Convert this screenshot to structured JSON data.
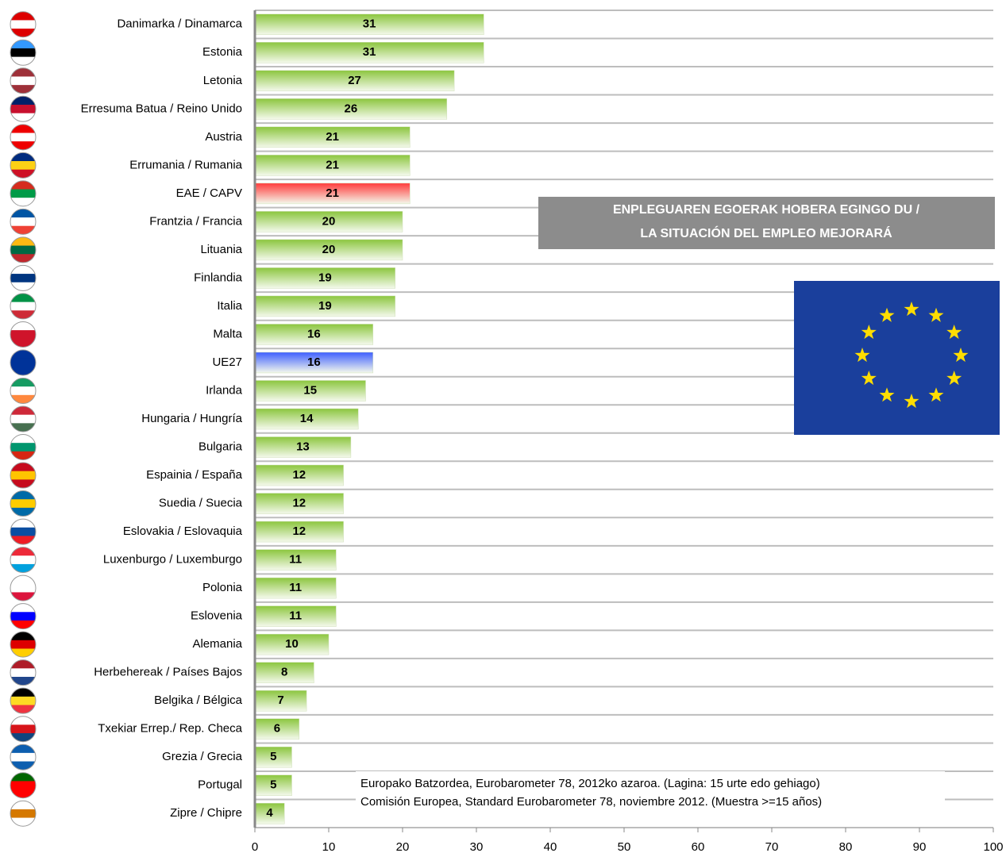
{
  "chart_data": {
    "type": "bar",
    "orientation": "horizontal",
    "title": "ENPLEGUAREN EGOERAK HOBERA EGINGO DU /",
    "subtitle": "LA SITUACIÓN DEL EMPLEO MEJORARÁ",
    "notes": [
      "Europako Batzordea,  Eurobarometer 78, 2012ko azaroa. (Lagina: 15 urte edo gehiago)",
      "Comisión Europea, Standard Eurobarometer 78, noviembre 2012. (Muestra >=15 años)"
    ],
    "categories": [
      "Danimarka / Dinamarca",
      "Estonia",
      "Letonia",
      "Erresuma Batua / Reino Unido",
      "Austria",
      "Errumania / Rumania",
      "EAE / CAPV",
      "Frantzia / Francia",
      "Lituania",
      "Finlandia",
      "Italia",
      "Malta",
      "UE27",
      "Irlanda",
      "Hungaria / Hungría",
      "Bulgaria",
      "Espainia / España",
      "Suedia / Suecia",
      "Eslovakia / Eslovaquia",
      "Luxenburgo / Luxemburgo",
      "Polonia",
      "Eslovenia",
      "Alemania",
      "Herbehereak / Países Bajos",
      "Belgika / Bélgica",
      "Txekiar Errep./ Rep. Checa",
      "Grezia / Grecia",
      "Portugal",
      "Zipre / Chipre"
    ],
    "values": [
      31,
      31,
      27,
      26,
      21,
      21,
      21,
      20,
      20,
      19,
      19,
      16,
      16,
      15,
      14,
      13,
      12,
      12,
      12,
      11,
      11,
      11,
      10,
      8,
      7,
      6,
      5,
      5,
      4
    ],
    "colors": [
      "#8cc63f",
      "#8cc63f",
      "#8cc63f",
      "#8cc63f",
      "#8cc63f",
      "#8cc63f",
      "#ff3b3b",
      "#8cc63f",
      "#8cc63f",
      "#8cc63f",
      "#8cc63f",
      "#8cc63f",
      "#3f5fff",
      "#8cc63f",
      "#8cc63f",
      "#8cc63f",
      "#8cc63f",
      "#8cc63f",
      "#8cc63f",
      "#8cc63f",
      "#8cc63f",
      "#8cc63f",
      "#8cc63f",
      "#8cc63f",
      "#8cc63f",
      "#8cc63f",
      "#8cc63f",
      "#8cc63f",
      "#8cc63f"
    ],
    "xlim": [
      0,
      100
    ],
    "xticks": [
      0,
      10,
      20,
      30,
      40,
      50,
      60,
      70,
      80,
      90,
      100
    ]
  }
}
